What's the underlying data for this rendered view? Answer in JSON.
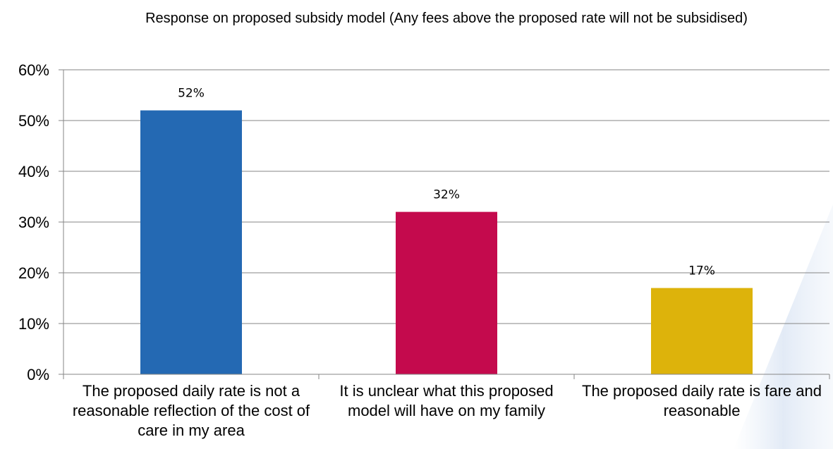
{
  "chart_data": {
    "type": "bar",
    "title": "Response on proposed subsidy model (Any fees above the proposed rate will not be subsidised)",
    "categories": [
      "The proposed daily rate is not a reasonable reflection of the cost of care in my area",
      "It is unclear what this proposed model will have on my family",
      "The proposed daily rate is fare and reasonable"
    ],
    "values": [
      0.52,
      0.32,
      0.17
    ],
    "value_labels": [
      "52%",
      "32%",
      "17%"
    ],
    "colors": [
      "#2469B3",
      "#C40A4D",
      "#DDB30B"
    ],
    "ylim": [
      0,
      0.6
    ],
    "yticks": [
      0,
      0.1,
      0.2,
      0.3,
      0.4,
      0.5,
      0.6
    ],
    "ytick_labels": [
      "0%",
      "10%",
      "20%",
      "30%",
      "40%",
      "50%",
      "60%"
    ],
    "grid": true,
    "legend": "none",
    "xlabel": "",
    "ylabel": ""
  }
}
